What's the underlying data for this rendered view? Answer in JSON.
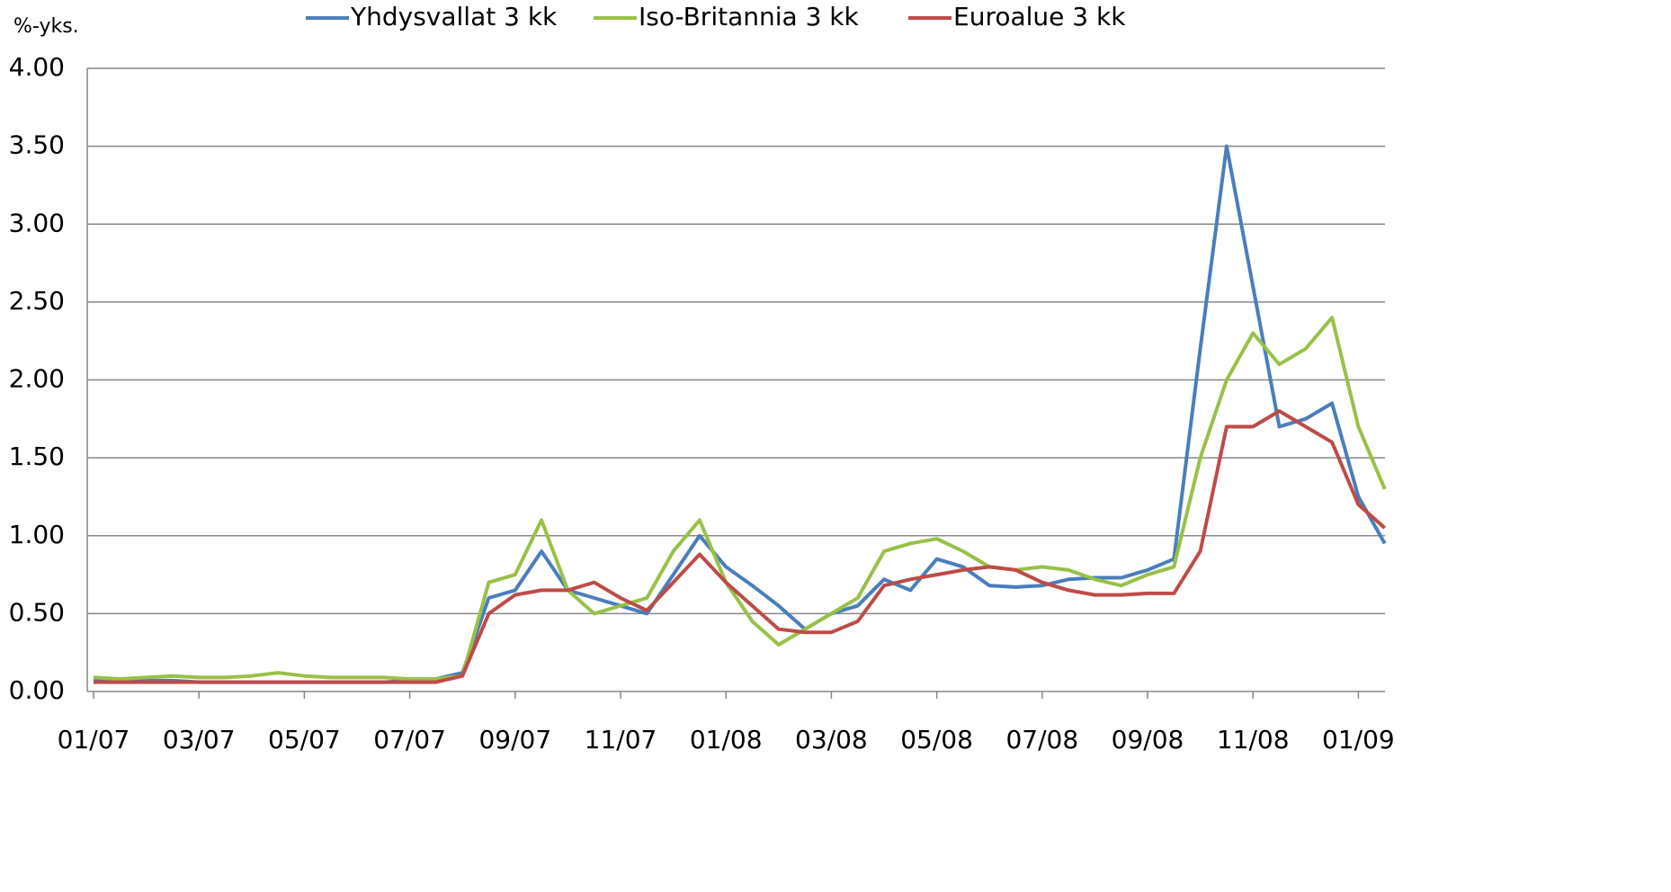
{
  "chart_data": {
    "type": "line",
    "y_label": "%-yks.",
    "categories": [
      "01/07",
      null,
      null,
      null,
      "03/07",
      null,
      null,
      null,
      "05/07",
      null,
      null,
      null,
      "07/07",
      null,
      null,
      null,
      "09/07",
      null,
      null,
      null,
      "11/07",
      null,
      null,
      null,
      "01/08",
      null,
      null,
      null,
      "03/08",
      null,
      null,
      null,
      "05/08",
      null,
      null,
      null,
      "07/08",
      null,
      null,
      null,
      "09/08",
      null,
      null,
      null,
      "11/08",
      null,
      null,
      null,
      "01/09",
      null
    ],
    "series": [
      {
        "name": "Yhdysvallat 3 kk",
        "color": "#4a7ebb",
        "values": [
          0.07,
          0.07,
          0.07,
          0.07,
          0.06,
          0.06,
          0.06,
          0.06,
          0.06,
          0.06,
          0.06,
          0.06,
          0.07,
          0.08,
          0.12,
          0.6,
          0.65,
          0.9,
          0.65,
          0.6,
          0.55,
          0.5,
          0.75,
          1.0,
          0.8,
          0.68,
          0.55,
          0.4,
          0.5,
          0.55,
          0.72,
          0.65,
          0.85,
          0.8,
          0.68,
          0.67,
          0.68,
          0.72,
          0.73,
          0.73,
          0.78,
          0.85,
          2.2,
          3.5,
          2.6,
          1.7,
          1.75,
          1.85,
          1.25,
          0.95
        ]
      },
      {
        "name": "Iso-Britannia 3 kk",
        "color": "#98c147",
        "values": [
          0.09,
          0.08,
          0.09,
          0.1,
          0.09,
          0.09,
          0.1,
          0.12,
          0.1,
          0.09,
          0.09,
          0.09,
          0.08,
          0.08,
          0.1,
          0.7,
          0.75,
          1.1,
          0.65,
          0.5,
          0.55,
          0.6,
          0.9,
          1.1,
          0.7,
          0.45,
          0.3,
          0.4,
          0.5,
          0.6,
          0.9,
          0.95,
          0.98,
          0.9,
          0.8,
          0.78,
          0.8,
          0.78,
          0.72,
          0.68,
          0.75,
          0.8,
          1.5,
          2.0,
          2.3,
          2.1,
          2.2,
          2.4,
          1.7,
          1.3
        ]
      },
      {
        "name": "Euroalue 3 kk",
        "color": "#be4b48",
        "values": [
          0.06,
          0.06,
          0.06,
          0.06,
          0.06,
          0.06,
          0.06,
          0.06,
          0.06,
          0.06,
          0.06,
          0.06,
          0.06,
          0.06,
          0.1,
          0.5,
          0.62,
          0.65,
          0.65,
          0.7,
          0.6,
          0.52,
          0.7,
          0.88,
          0.7,
          0.55,
          0.4,
          0.38,
          0.38,
          0.45,
          0.68,
          0.72,
          0.75,
          0.78,
          0.8,
          0.78,
          0.7,
          0.65,
          0.62,
          0.62,
          0.63,
          0.63,
          0.9,
          1.7,
          1.7,
          1.8,
          1.7,
          1.6,
          1.2,
          1.05
        ]
      }
    ],
    "ylim": [
      0,
      4
    ],
    "yticks": [
      {
        "value": 0,
        "label": "0.00"
      },
      {
        "value": 0.5,
        "label": "0.50"
      },
      {
        "value": 1,
        "label": "1.00"
      },
      {
        "value": 1.5,
        "label": "1.50"
      },
      {
        "value": 2,
        "label": "2.00"
      },
      {
        "value": 2.5,
        "label": "2.50"
      },
      {
        "value": 3,
        "label": "3.00"
      },
      {
        "value": 3.5,
        "label": "3.50"
      },
      {
        "value": 4,
        "label": "4.00"
      }
    ],
    "grid": true
  }
}
